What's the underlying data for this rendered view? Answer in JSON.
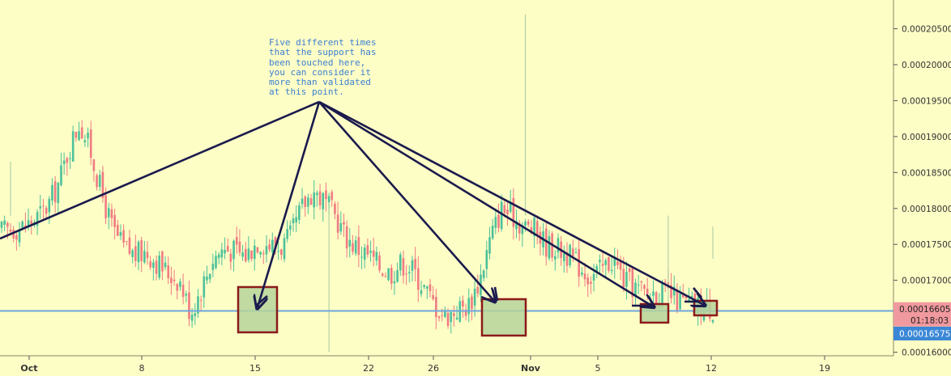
{
  "chart_data": {
    "type": "candlestick",
    "x_axis": {
      "tick_labels": [
        "Oct",
        "8",
        "15",
        "22",
        "26",
        "Nov",
        "5",
        "12",
        "19"
      ],
      "bold_labels": [
        "Oct",
        "Nov"
      ]
    },
    "y_axis": {
      "range": [
        0.0001595,
        0.000209
      ],
      "tick_values": [
        0.00016,
        0.000165,
        0.00017,
        0.000175,
        0.00018,
        0.000185,
        0.00019,
        0.000195,
        0.0002,
        0.000205
      ],
      "tick_labels": [
        "0.00016000",
        "0.00016500",
        "0.00017000",
        "0.00017500",
        "0.00018000",
        "0.00018500",
        "0.00019000",
        "0.00019500",
        "0.00020000",
        "0.00020500"
      ]
    },
    "support_level": 0.00016575,
    "price_labels": {
      "current_price": "0.00016605",
      "countdown": "01:18:03",
      "support_price": "0.00016575"
    },
    "annotation": "Five different times\nthat the support has\nbeen touched here,\nyou can consider it\nmore than validated\nat this point.",
    "close_path": [
      0.0001768,
      0.0001772,
      0.0001775,
      0.0001785,
      0.00018,
      0.000183,
      0.000188,
      0.000192,
      0.000188,
      0.000182,
      0.000177,
      0.0001745,
      0.0001735,
      0.000174,
      0.0001725,
      0.000171,
      0.00017,
      0.0001655,
      0.000169,
      0.000173,
      0.0001745,
      0.000174,
      0.0001735,
      0.0001755,
      0.000175,
      0.0001745,
      0.000176,
      0.00018,
      0.0001825,
      0.000181,
      0.000179,
      0.000176,
      0.0001745,
      0.0001735,
      0.000172,
      0.000171,
      0.0001725,
      0.0001715,
      0.000169,
      0.0001665,
      0.000165,
      0.000166,
      0.0001665,
      0.00017,
      0.000176,
      0.00018,
      0.000179,
      0.0001775,
      0.000177,
      0.000175,
      0.0001745,
      0.0001735,
      0.000172,
      0.0001705,
      0.0001715,
      0.000173,
      0.00017,
      0.000169,
      0.000168,
      0.0001685,
      0.000168,
      0.000167,
      0.0001665,
      0.0001663,
      0.000166
    ]
  },
  "colors": {
    "background": "#fdfdc6",
    "bull": "#4cc19a",
    "bear": "#f07b82",
    "trendline": "#1a1a4d",
    "support_line": "#6fa6dc",
    "support_box_fill": "#b5d39a",
    "support_box_stroke": "#8b1a1a",
    "annotation_text": "#3b7fd1",
    "price_badge_current": "#f0999e",
    "price_badge_support": "#3b87d6"
  }
}
